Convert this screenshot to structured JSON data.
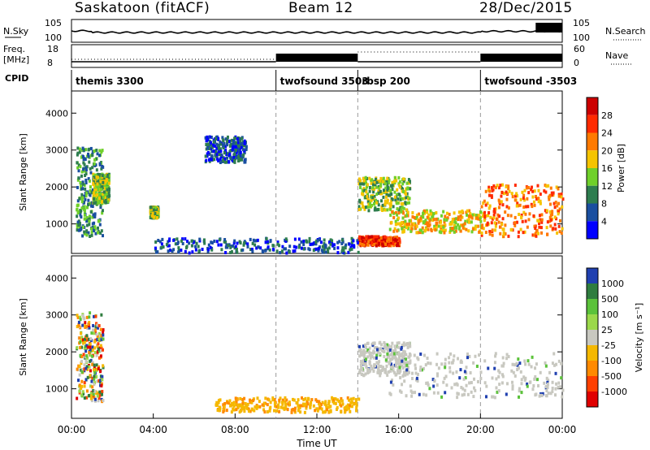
{
  "header": {
    "station": "Saskatoon (fitACF)",
    "beam": "Beam 12",
    "date": "28/Dec/2015"
  },
  "side_labels": {
    "nsky": "N.Sky",
    "nsearch": "N.Search",
    "freq_line1": "Freq.",
    "freq_line2": "[MHz]",
    "nave": "Nave",
    "cpid": "CPID"
  },
  "noise_axis": {
    "left_ticks": [
      "10^5",
      "10^0"
    ],
    "right_ticks": [
      "10^5",
      "10^0"
    ]
  },
  "freq_axis": {
    "left_ticks": [
      "18",
      "8"
    ],
    "right_ticks": [
      "60",
      "0"
    ]
  },
  "cpid_segments": [
    {
      "label": "themis 3300",
      "start_h": 0
    },
    {
      "label": "twofsound 3503",
      "start_h": 10
    },
    {
      "label": "rbsp 200",
      "start_h": 14
    },
    {
      "label": "twofsound -3503",
      "start_h": 20
    }
  ],
  "chart_data": [
    {
      "type": "heatmap",
      "panel": "power",
      "ylabel": "Slant Range [km]",
      "yticks": [
        1000,
        2000,
        3000,
        4000
      ],
      "ylim": [
        200,
        4600
      ],
      "xlim_hours": [
        0,
        24
      ],
      "colorbar": {
        "label": "Power [dB]",
        "ticks": [
          "28",
          "24",
          "20",
          "16",
          "12",
          "8",
          "4"
        ],
        "colors": [
          "#cc0000",
          "#ff2a00",
          "#ff7a00",
          "#f5c400",
          "#6fd02a",
          "#2e7d4f",
          "#1a4fa0",
          "#0000ff"
        ]
      },
      "regions": [
        {
          "t": [
            0.2,
            1.5
          ],
          "r": [
            700,
            3100
          ],
          "level": 2
        },
        {
          "t": [
            1.0,
            1.8
          ],
          "r": [
            1600,
            2400
          ],
          "level": 3
        },
        {
          "t": [
            3.8,
            4.2
          ],
          "r": [
            1200,
            1500
          ],
          "level": 3
        },
        {
          "t": [
            6.5,
            8.5
          ],
          "r": [
            2700,
            3400
          ],
          "level": 1
        },
        {
          "t": [
            14.0,
            16.5
          ],
          "r": [
            1400,
            2300
          ],
          "level": 3
        },
        {
          "t": [
            15.5,
            20.0
          ],
          "r": [
            800,
            1400
          ],
          "level": 4
        },
        {
          "t": [
            20.0,
            24.0
          ],
          "r": [
            700,
            2100
          ],
          "level": 5
        },
        {
          "t": [
            14.0,
            16.0
          ],
          "r": [
            450,
            700
          ],
          "level": 6
        },
        {
          "t": [
            4.0,
            14.0
          ],
          "r": [
            250,
            650
          ],
          "level": 1
        }
      ]
    },
    {
      "type": "heatmap",
      "panel": "velocity",
      "ylabel": "Slant Range [km]",
      "yticks": [
        1000,
        2000,
        3000,
        4000
      ],
      "ylim": [
        200,
        4600
      ],
      "xlim_hours": [
        0,
        24
      ],
      "xticks": [
        "00:00",
        "04:00",
        "08:00",
        "12:00",
        "16:00",
        "20:00",
        "00:00"
      ],
      "xlabel": "Time UT",
      "colorbar": {
        "label": "Velocity [m s⁻¹]",
        "ticks": [
          "1000",
          "500",
          "100",
          "25",
          "-25",
          "-100",
          "-500",
          "-1000"
        ],
        "colors": [
          "#2040b0",
          "#2f7d3f",
          "#5bc23a",
          "#9bd84a",
          "#c8c8c0",
          "#f5b800",
          "#ff8a00",
          "#ff4000",
          "#e00000"
        ]
      },
      "regions": [
        {
          "t": [
            0.2,
            1.5
          ],
          "r": [
            700,
            3100
          ],
          "v": "mixed"
        },
        {
          "t": [
            14.0,
            16.5
          ],
          "r": [
            1400,
            2300
          ],
          "v": "~0 (grey)"
        },
        {
          "t": [
            15.5,
            24.0
          ],
          "r": [
            800,
            2000
          ],
          "v": "~0 (grey) with + / - patches"
        },
        {
          "t": [
            7.0,
            14.0
          ],
          "r": [
            400,
            800
          ],
          "v": "-100 (orange)"
        }
      ]
    }
  ]
}
